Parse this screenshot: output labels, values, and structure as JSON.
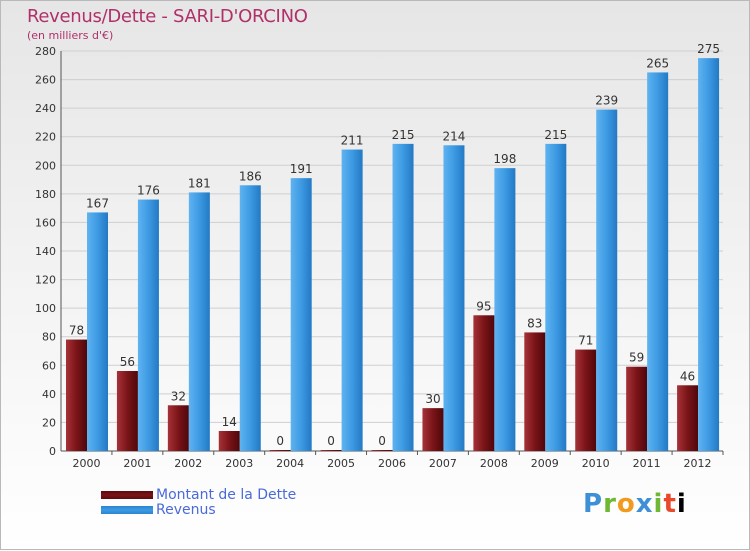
{
  "title": "Revenus/Dette - SARI-D'ORCINO",
  "subtitle": "(en milliers d'€)",
  "logo_text": "Proxiti",
  "colors": {
    "debt": "#7a1418",
    "revenue": "#3d9ae3",
    "title": "#b0306a",
    "legend_text": "#4a6ad8"
  },
  "chart_data": {
    "type": "bar",
    "categories": [
      "2000",
      "2001",
      "2002",
      "2003",
      "2004",
      "2005",
      "2006",
      "2007",
      "2008",
      "2009",
      "2010",
      "2011",
      "2012"
    ],
    "series": [
      {
        "name": "Montant de la Dette",
        "values": [
          78,
          56,
          32,
          14,
          0,
          0,
          0,
          30,
          95,
          83,
          71,
          59,
          46
        ]
      },
      {
        "name": "Revenus",
        "values": [
          167,
          176,
          181,
          186,
          191,
          211,
          215,
          214,
          198,
          215,
          239,
          265,
          275
        ]
      }
    ],
    "ylim": [
      0,
      280
    ],
    "yticks": [
      0,
      20,
      40,
      60,
      80,
      100,
      120,
      140,
      160,
      180,
      200,
      220,
      240,
      260,
      280
    ],
    "grid": true,
    "legend": "bottom-left"
  }
}
